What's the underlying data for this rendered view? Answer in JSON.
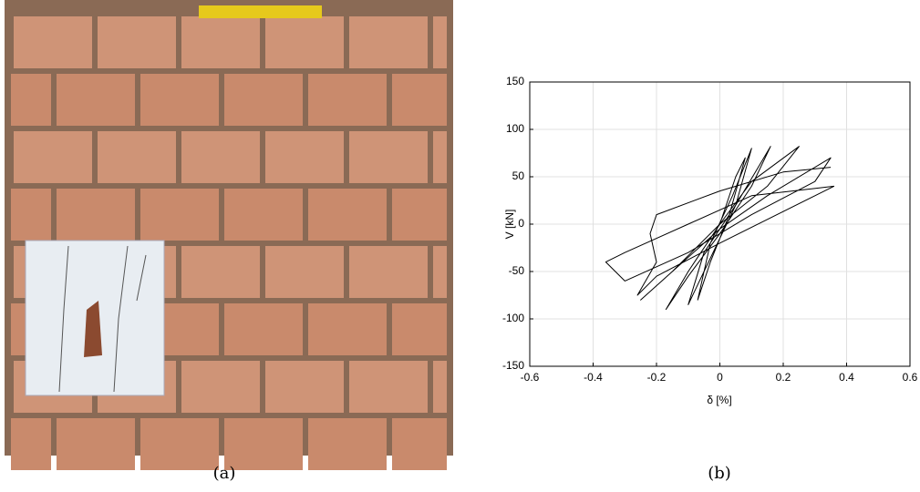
{
  "chart_data": {
    "type": "line",
    "xlabel": "δ [%]",
    "ylabel": "V [kN]",
    "xlim": [
      -0.6,
      0.6
    ],
    "ylim": [
      -150,
      150
    ],
    "xticks": [
      -0.6,
      -0.4,
      -0.2,
      0,
      0.2,
      0.4,
      0.6
    ],
    "yticks": [
      -150,
      -100,
      -50,
      0,
      50,
      100,
      150
    ],
    "grid": true,
    "color": "#000000",
    "x": [
      0,
      0.05,
      0.08,
      0.03,
      -0.03,
      -0.07,
      -0.03,
      0.04,
      0.1,
      0.05,
      -0.05,
      -0.1,
      -0.05,
      0.05,
      0.16,
      0.1,
      0,
      -0.1,
      -0.17,
      -0.1,
      0,
      0.1,
      0.25,
      0.15,
      0,
      -0.15,
      -0.25,
      -0.15,
      0,
      0.15,
      0.35,
      0.3,
      0.1,
      -0.1,
      -0.3,
      -0.36,
      -0.3,
      -0.1,
      0.1,
      0.36,
      0.3,
      0.15,
      0,
      -0.2,
      -0.26,
      -0.2,
      -0.22,
      -0.2,
      0,
      0.2,
      0.35
    ],
    "values": [
      0,
      50,
      70,
      10,
      -40,
      -80,
      -20,
      30,
      80,
      20,
      -50,
      -85,
      -30,
      20,
      82,
      40,
      -10,
      -55,
      -90,
      -50,
      0,
      45,
      82,
      40,
      0,
      -50,
      -80,
      -50,
      -5,
      30,
      70,
      45,
      10,
      -30,
      -60,
      -40,
      -30,
      0,
      30,
      40,
      30,
      5,
      -20,
      -55,
      -75,
      -40,
      -10,
      10,
      35,
      55,
      60
    ]
  },
  "captions": [
    "(a)",
    "(b)"
  ]
}
